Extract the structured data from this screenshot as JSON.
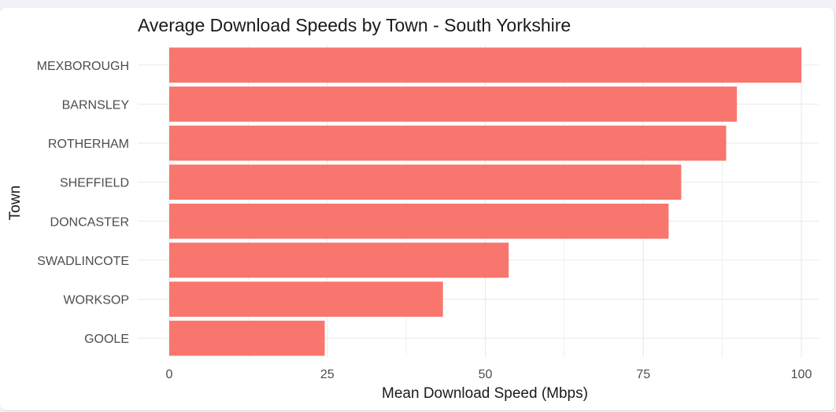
{
  "chart_data": {
    "type": "bar",
    "orientation": "horizontal",
    "title": "Average Download Speeds by Town - South Yorkshire",
    "xlabel": "Mean Download Speed (Mbps)",
    "ylabel": "Town",
    "categories": [
      "MEXBOROUGH",
      "BARNSLEY",
      "ROTHERHAM",
      "SHEFFIELD",
      "DONCASTER",
      "SWADLINCOTE",
      "WORKSOP",
      "GOOLE"
    ],
    "values": [
      100,
      89.8,
      88.1,
      81,
      79,
      53.7,
      43.3,
      24.6
    ],
    "xlim": [
      0,
      100
    ],
    "xticks": [
      0,
      25,
      50,
      75,
      100
    ],
    "grid": true,
    "bar_color": "#F8766D",
    "grid_color": "#EBEBEB"
  }
}
